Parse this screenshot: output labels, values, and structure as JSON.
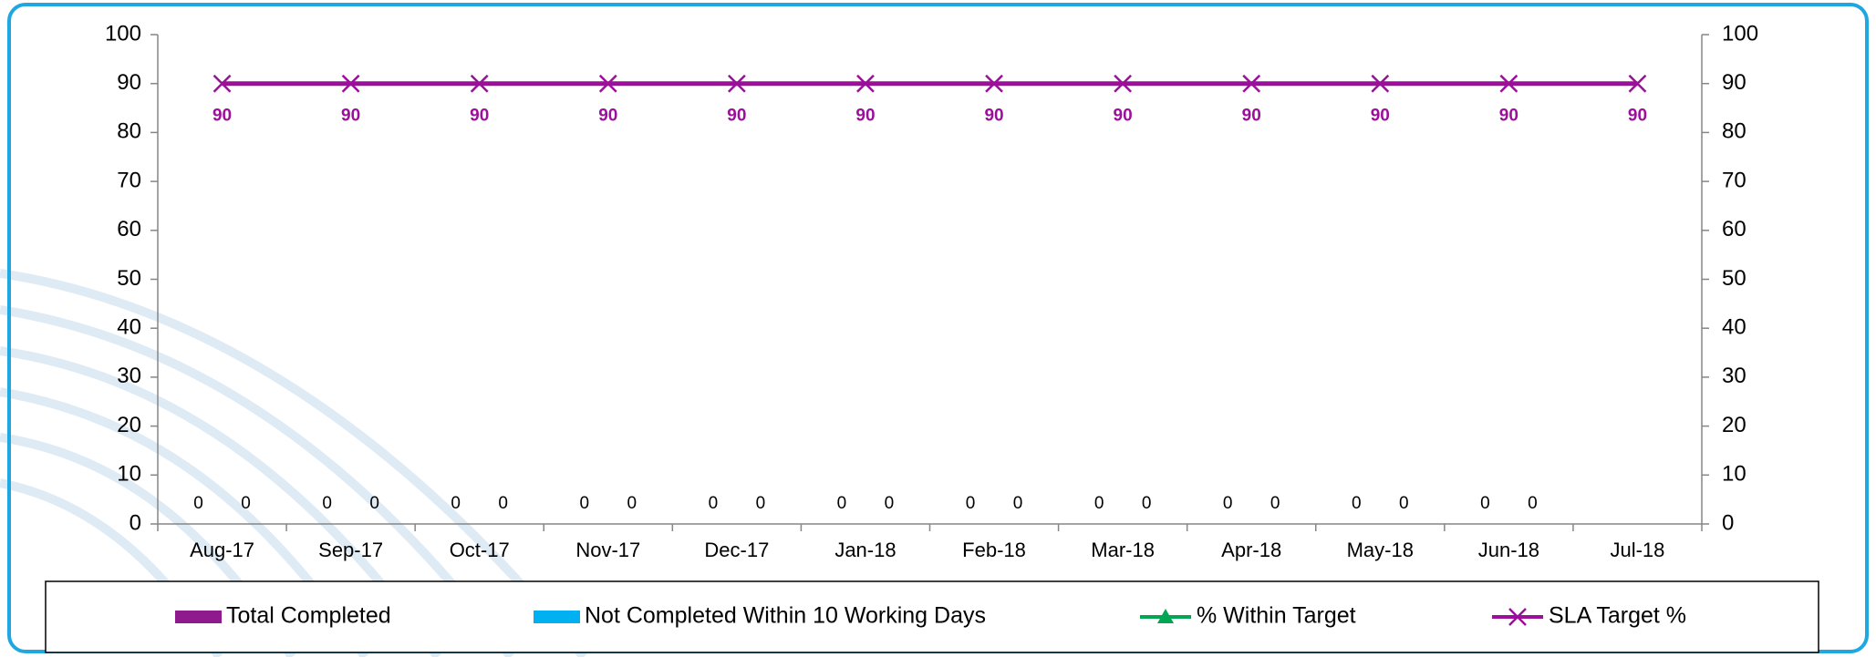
{
  "chart_data": {
    "type": "bar",
    "categories": [
      "Aug-17",
      "Sep-17",
      "Oct-17",
      "Nov-17",
      "Dec-17",
      "Jan-18",
      "Feb-18",
      "Mar-18",
      "Apr-18",
      "May-18",
      "Jun-18",
      "Jul-18"
    ],
    "series": [
      {
        "name": "Total Completed",
        "type": "bar",
        "color": "#8e1a8e",
        "values": [
          0,
          0,
          0,
          0,
          0,
          0,
          0,
          0,
          0,
          0,
          0,
          null
        ]
      },
      {
        "name": "Not Completed Within 10 Working Days",
        "type": "bar",
        "color": "#00b0f0",
        "values": [
          0,
          0,
          0,
          0,
          0,
          0,
          0,
          0,
          0,
          0,
          0,
          null
        ]
      },
      {
        "name": "% Within Target",
        "type": "line",
        "marker": "triangle",
        "axis": "y2",
        "color": "#00a651",
        "values": [
          null,
          null,
          null,
          null,
          null,
          null,
          null,
          null,
          null,
          null,
          null,
          null
        ]
      },
      {
        "name": "SLA Target %",
        "type": "line",
        "marker": "x",
        "axis": "y2",
        "color": "#9b0f9b",
        "values": [
          90,
          90,
          90,
          90,
          90,
          90,
          90,
          90,
          90,
          90,
          90,
          90
        ]
      }
    ],
    "ylim": [
      0,
      100
    ],
    "yticks": [
      0,
      10,
      20,
      30,
      40,
      50,
      60,
      70,
      80,
      90,
      100
    ],
    "y2lim": [
      0,
      100
    ],
    "y2ticks": [
      0,
      10,
      20,
      30,
      40,
      50,
      60,
      70,
      80,
      90,
      100
    ],
    "legend": "bottom"
  }
}
